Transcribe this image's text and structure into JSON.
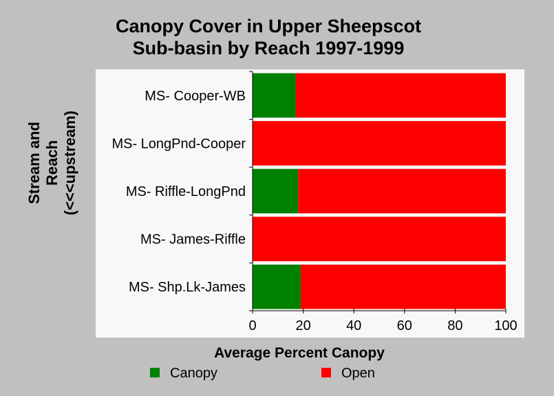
{
  "chart_data": {
    "type": "bar",
    "orientation": "horizontal",
    "stacked": true,
    "title": [
      "Canopy Cover in Upper Sheepscot",
      "Sub-basin by Reach 1997-1999"
    ],
    "xlabel": "Average Percent Canopy",
    "ylabel": [
      "Stream and",
      "Reach",
      "(<<<upstream)"
    ],
    "categories": [
      "MS- Cooper-WB",
      "MS- LongPnd-Cooper",
      "MS- Riffle-LongPnd",
      "MS- James-Riffle",
      "MS- Shp.Lk-James"
    ],
    "series": [
      {
        "name": "Canopy",
        "color": "#008000",
        "values": [
          17,
          0,
          18,
          0,
          19
        ]
      },
      {
        "name": "Open",
        "color": "#ff0000",
        "values": [
          83,
          100,
          82,
          100,
          81
        ]
      }
    ],
    "xlim": [
      0,
      100
    ],
    "xticks": [
      0,
      20,
      40,
      60,
      80,
      100
    ],
    "grid": false,
    "legend_position": "bottom",
    "plot_background": "#f8f8f8"
  }
}
